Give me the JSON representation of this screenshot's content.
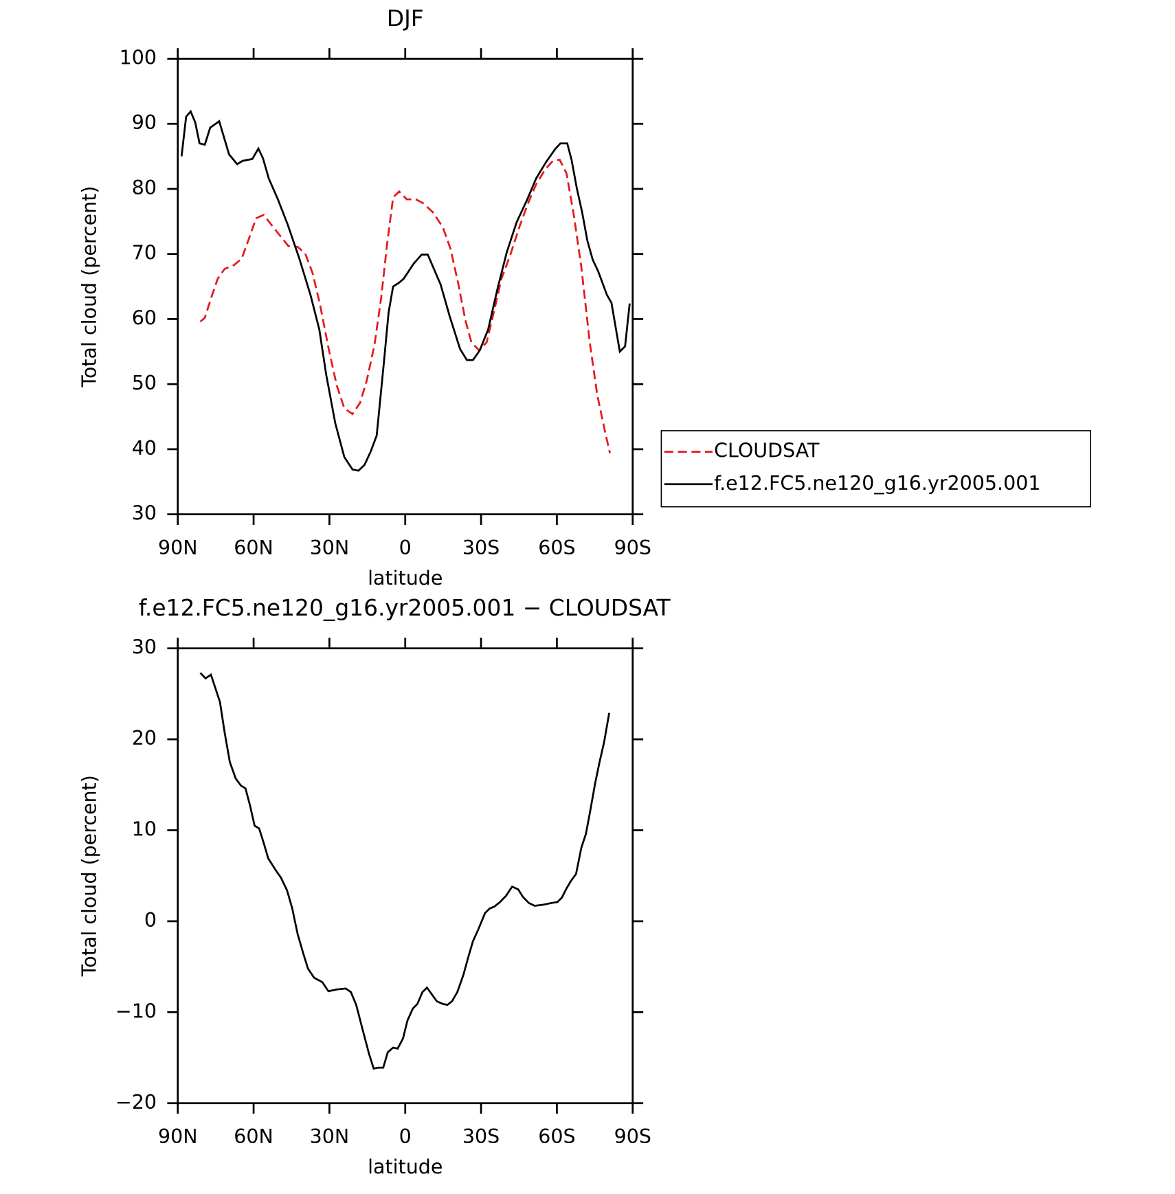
{
  "chart_data": [
    {
      "type": "line",
      "title": "DJF",
      "xlabel": "latitude",
      "ylabel": "Total cloud (percent)",
      "xlim": [
        90,
        -90
      ],
      "ylim": [
        30,
        100
      ],
      "xticks": [
        {
          "value": 90,
          "label": "90N"
        },
        {
          "value": 60,
          "label": "60N"
        },
        {
          "value": 30,
          "label": "30N"
        },
        0,
        {
          "value": -30,
          "label": "30S"
        },
        {
          "value": -60,
          "label": "60S"
        },
        {
          "value": -90,
          "label": "90S"
        }
      ],
      "yticks": [
        30,
        40,
        50,
        60,
        70,
        80,
        90,
        100
      ],
      "legend": "outside right",
      "series": [
        {
          "name": "CLOUDSAT",
          "color": "#e41a1c",
          "dash": true,
          "x": [
            81.1,
            79.3,
            76.6,
            74.2,
            71.5,
            67.7,
            64.7,
            62,
            59,
            56,
            53,
            49.5,
            46.2,
            42.6,
            39.6,
            36.7,
            33.7,
            30.4,
            27.1,
            24.1,
            20.9,
            17.9,
            15.2,
            12.2,
            9.5,
            7.2,
            4.8,
            2.4,
            -0.6,
            -4.2,
            -7.1,
            -11,
            -14.9,
            -17.9,
            -20.9,
            -23.8,
            -26.2,
            -29.2,
            -32.2,
            -35.2,
            -38.1,
            -41.7,
            -45.3,
            -48.6,
            -51.8,
            -55.4,
            -58.4,
            -61.1,
            -63.8,
            -66.7,
            -69.7,
            -73,
            -76,
            -79,
            -81
          ],
          "values": [
            59.6,
            60.2,
            63.5,
            66.2,
            67.7,
            68.3,
            69.3,
            72.2,
            75.5,
            76,
            74.5,
            72.8,
            71.2,
            71.1,
            70.1,
            67.1,
            62.2,
            55.6,
            49.8,
            46.3,
            45.4,
            47.1,
            50.6,
            56,
            63.3,
            71.4,
            78.7,
            79.6,
            78.4,
            78.4,
            77.8,
            76.4,
            74.1,
            70.8,
            65.6,
            59.8,
            56.4,
            55.2,
            56.4,
            61.3,
            66.2,
            70,
            74.3,
            77.8,
            80.7,
            83,
            84.3,
            84.5,
            82.4,
            76,
            67.9,
            56.4,
            48.3,
            42.8,
            39.4
          ]
        },
        {
          "name": "f.e12.FC5.ne120_g16.yr2005.001",
          "color": "#000000",
          "dash": false,
          "x": [
            88.5,
            86.7,
            84.9,
            83.1,
            81.4,
            79.3,
            77.2,
            73.6,
            69.7,
            66.5,
            64.4,
            60.5,
            58.1,
            56.3,
            54,
            50.4,
            46.5,
            42,
            37.5,
            34,
            31.3,
            27.7,
            24.1,
            20.9,
            18.5,
            16.1,
            13.7,
            11.3,
            8.4,
            6.6,
            4.8,
            2.4,
            0.6,
            -3.3,
            -6.5,
            -8.9,
            -14,
            -17.6,
            -21.7,
            -24.4,
            -26.8,
            -29.5,
            -32.8,
            -36.6,
            -40.2,
            -44.1,
            -48.3,
            -51.8,
            -55.7,
            -59.3,
            -61.4,
            -64.1,
            -65.8,
            -67.9,
            -70,
            -72.1,
            -74.2,
            -76.3,
            -79.8,
            -81.6,
            -84.9,
            -87,
            -88.8
          ],
          "values": [
            85,
            91.1,
            91.9,
            90.2,
            87,
            86.8,
            89.4,
            90.4,
            85.3,
            83.8,
            84.3,
            84.6,
            86.2,
            84.7,
            81.6,
            78.4,
            74.5,
            69.4,
            63.7,
            58.4,
            51.5,
            44,
            38.8,
            36.9,
            36.7,
            37.6,
            39.6,
            42.1,
            53.5,
            61,
            65,
            65.6,
            66.2,
            68.5,
            69.9,
            69.9,
            65.3,
            60.4,
            55.4,
            53.7,
            53.7,
            55.2,
            58.4,
            64.8,
            70.3,
            74.9,
            78.4,
            81.6,
            84.1,
            86.1,
            87,
            87,
            84.5,
            80.1,
            76.4,
            72,
            69.1,
            67.4,
            63.7,
            62.5,
            55,
            55.8,
            62.4
          ]
        }
      ]
    },
    {
      "type": "line",
      "title": "f.e12.FC5.ne120_g16.yr2005.001 − CLOUDSAT",
      "xlabel": "latitude",
      "ylabel": "Total cloud (percent)",
      "xlim": [
        90,
        -90
      ],
      "ylim": [
        -20,
        30
      ],
      "xticks": [
        {
          "value": 90,
          "label": "90N"
        },
        {
          "value": 60,
          "label": "60N"
        },
        {
          "value": 30,
          "label": "30N"
        },
        0,
        {
          "value": -30,
          "label": "30S"
        },
        {
          "value": -60,
          "label": "60S"
        },
        {
          "value": -90,
          "label": "90S"
        }
      ],
      "yticks": [
        {
          "value": -20,
          "label": "−20"
        },
        {
          "value": -10,
          "label": "−10"
        },
        0,
        10,
        20,
        30
      ],
      "series": [
        {
          "color": "#000000",
          "dash": false,
          "x": [
            81.1,
            79,
            76.9,
            73.3,
            71.5,
            69.4,
            67.1,
            65,
            63.2,
            61.4,
            59.6,
            57.8,
            56,
            54.2,
            51,
            49.2,
            46.8,
            44.7,
            42.6,
            40.5,
            38.5,
            36.1,
            32.8,
            30.4,
            27.1,
            23.5,
            21.5,
            19.4,
            16.7,
            14.3,
            12.5,
            10.7,
            8.7,
            6.9,
            4.8,
            3,
            0.9,
            -0.9,
            -3,
            -4.8,
            -6.8,
            -8.6,
            -10.4,
            -12.5,
            -14.9,
            -16.7,
            -18.5,
            -20.6,
            -23,
            -25.1,
            -26.8,
            -28.9,
            -31.6,
            -33.4,
            -35.2,
            -37.5,
            -39.9,
            -42.3,
            -44.7,
            -46.5,
            -48.9,
            -51.2,
            -54.2,
            -57.8,
            -60.2,
            -62,
            -63.8,
            -65.5,
            -67.6,
            -69.7,
            -71.5,
            -73.3,
            -75.1,
            -76.9,
            -78.7,
            -80.7
          ],
          "values": [
            27.3,
            26.7,
            27.1,
            24.1,
            20.8,
            17.5,
            15.7,
            14.9,
            14.6,
            12.7,
            10.5,
            10.2,
            8.6,
            6.9,
            5.5,
            4.8,
            3.4,
            1.4,
            -1.4,
            -3.4,
            -5.2,
            -6.2,
            -6.7,
            -7.7,
            -7.5,
            -7.4,
            -7.8,
            -9.2,
            -12.1,
            -14.6,
            -16.2,
            -16.1,
            -16.1,
            -14.4,
            -13.9,
            -14,
            -12.9,
            -10.9,
            -9.6,
            -9.1,
            -7.8,
            -7.3,
            -8,
            -8.8,
            -9.1,
            -9.2,
            -8.8,
            -7.8,
            -5.9,
            -3.8,
            -2.2,
            -0.9,
            0.9,
            1.4,
            1.6,
            2.1,
            2.8,
            3.8,
            3.5,
            2.7,
            2,
            1.7,
            1.8,
            2,
            2.1,
            2.6,
            3.6,
            4.4,
            5.2,
            8.1,
            9.6,
            12.3,
            15.1,
            17.5,
            19.7,
            22.9
          ]
        }
      ]
    }
  ]
}
